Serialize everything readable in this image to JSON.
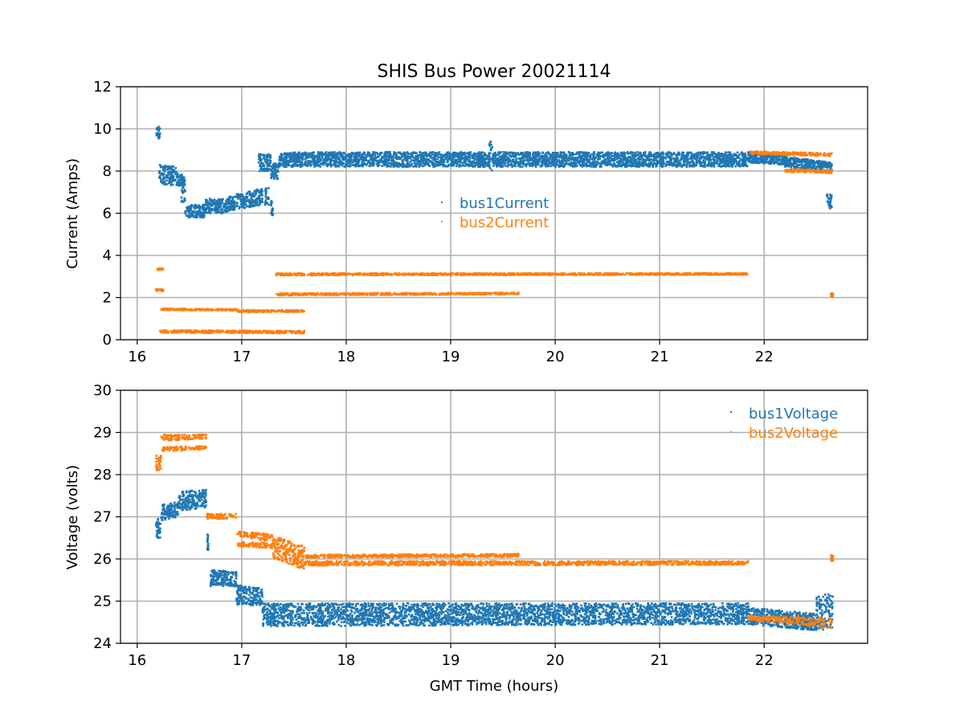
{
  "chart_data": [
    {
      "type": "scatter",
      "title": "SHIS Bus Power 20021114",
      "xlabel": "",
      "ylabel": "Current (Amps)",
      "xlim": [
        15.84,
        22.99
      ],
      "ylim": [
        0,
        12
      ],
      "xticks": [
        16,
        17,
        18,
        19,
        20,
        21,
        22
      ],
      "yticks": [
        0,
        2,
        4,
        6,
        8,
        10,
        12
      ],
      "grid": true,
      "legend_position": "center",
      "series": [
        {
          "name": "bus1Current",
          "color": "#1f77b4",
          "bands": [
            [
              16.18,
              16.22,
              9.5,
              10.1,
              9.5,
              10.1
            ],
            [
              16.21,
              16.38,
              7.4,
              8.3,
              7.3,
              8.2
            ],
            [
              16.38,
              16.45,
              7.3,
              7.9,
              7.3,
              7.8
            ],
            [
              16.42,
              16.46,
              6.5,
              7.6,
              6.5,
              7.6
            ],
            [
              16.46,
              16.65,
              5.8,
              6.4,
              5.8,
              6.4
            ],
            [
              16.65,
              16.87,
              6.0,
              6.7,
              6.0,
              6.7
            ],
            [
              16.87,
              17.2,
              6.1,
              6.8,
              6.4,
              7.2
            ],
            [
              17.22,
              17.26,
              6.4,
              7.3,
              6.4,
              7.3
            ],
            [
              17.28,
              17.3,
              5.9,
              6.6,
              5.9,
              6.6
            ],
            [
              17.16,
              17.28,
              8.0,
              8.8,
              8.0,
              8.8
            ],
            [
              17.28,
              17.36,
              7.6,
              8.4,
              7.6,
              8.4
            ],
            [
              17.36,
              19.37,
              8.2,
              8.9,
              8.2,
              8.9
            ],
            [
              19.37,
              19.4,
              8.0,
              9.5,
              8.0,
              9.5
            ],
            [
              19.4,
              21.85,
              8.2,
              8.9,
              8.2,
              8.9
            ],
            [
              21.85,
              22.2,
              8.4,
              8.9,
              8.3,
              8.8
            ],
            [
              22.2,
              22.65,
              8.2,
              8.7,
              7.9,
              8.4
            ],
            [
              22.6,
              22.65,
              6.2,
              6.9,
              6.2,
              6.9
            ]
          ]
        },
        {
          "name": "bus2Current",
          "color": "#ff7f0e",
          "bands": [
            [
              16.18,
              16.25,
              3.3,
              3.4,
              3.3,
              3.4
            ],
            [
              16.18,
              16.25,
              2.3,
              2.4,
              2.3,
              2.4
            ],
            [
              16.23,
              16.95,
              1.4,
              1.48,
              1.38,
              1.46
            ],
            [
              16.95,
              17.6,
              1.3,
              1.4,
              1.32,
              1.42
            ],
            [
              16.22,
              17.6,
              0.33,
              0.45,
              0.3,
              0.42
            ],
            [
              17.33,
              21.85,
              3.05,
              3.15,
              3.08,
              3.16
            ],
            [
              17.33,
              19.65,
              2.1,
              2.2,
              2.15,
              2.23
            ],
            [
              21.85,
              22.65,
              8.8,
              8.95,
              8.7,
              8.85
            ],
            [
              22.2,
              22.65,
              7.95,
              8.1,
              7.9,
              8.05
            ],
            [
              22.64,
              22.66,
              2.05,
              2.2,
              2.05,
              2.2
            ]
          ]
        }
      ]
    },
    {
      "type": "scatter",
      "title": "",
      "xlabel": "GMT Time (hours)",
      "ylabel": "Voltage (volts)",
      "xlim": [
        15.84,
        22.99
      ],
      "ylim": [
        24,
        30
      ],
      "xticks": [
        16,
        17,
        18,
        19,
        20,
        21,
        22
      ],
      "yticks": [
        24,
        25,
        26,
        27,
        28,
        29,
        30
      ],
      "grid": true,
      "legend_position": "upper right",
      "series": [
        {
          "name": "bus1Voltage",
          "color": "#1f77b4",
          "bands": [
            [
              16.18,
              16.23,
              26.5,
              27.0,
              26.5,
              27.0
            ],
            [
              16.23,
              16.4,
              26.9,
              27.3,
              27.0,
              27.35
            ],
            [
              16.4,
              16.66,
              27.15,
              27.6,
              27.2,
              27.65
            ],
            [
              16.67,
              16.68,
              26.2,
              26.6,
              26.2,
              26.6
            ],
            [
              16.7,
              16.95,
              25.35,
              25.75,
              25.35,
              25.7
            ],
            [
              16.95,
              17.2,
              24.9,
              25.4,
              24.9,
              25.3
            ],
            [
              17.2,
              21.85,
              24.4,
              24.95,
              24.45,
              24.95
            ],
            [
              21.85,
              22.5,
              24.45,
              24.85,
              24.3,
              24.7
            ],
            [
              22.5,
              22.66,
              24.3,
              25.1,
              24.3,
              25.2
            ]
          ]
        },
        {
          "name": "bus2Voltage",
          "color": "#ff7f0e",
          "bands": [
            [
              16.18,
              16.23,
              28.1,
              28.45,
              28.1,
              28.45
            ],
            [
              16.23,
              16.66,
              28.8,
              28.95,
              28.85,
              28.95
            ],
            [
              16.24,
              16.66,
              28.55,
              28.65,
              28.6,
              28.68
            ],
            [
              16.66,
              16.95,
              26.95,
              27.07,
              26.95,
              27.07
            ],
            [
              16.95,
              17.3,
              26.55,
              26.65,
              26.4,
              26.6
            ],
            [
              16.95,
              17.3,
              26.3,
              26.4,
              26.25,
              26.4
            ],
            [
              17.3,
              17.6,
              26.0,
              26.55,
              25.75,
              26.3
            ],
            [
              17.6,
              19.65,
              26.03,
              26.1,
              26.05,
              26.12
            ],
            [
              17.6,
              21.85,
              25.84,
              25.95,
              25.86,
              25.95
            ],
            [
              21.85,
              22.65,
              24.55,
              24.65,
              24.35,
              24.6
            ],
            [
              22.64,
              22.66,
              25.95,
              26.1,
              25.95,
              26.1
            ]
          ]
        }
      ]
    }
  ]
}
